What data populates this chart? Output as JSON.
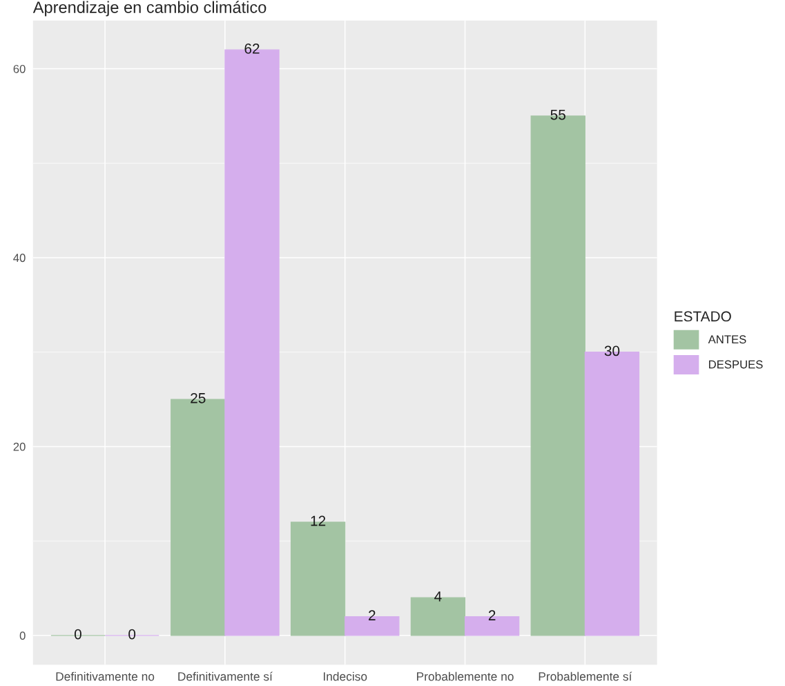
{
  "chart_data": {
    "type": "bar",
    "title": "Aprendizaje en cambio climático",
    "categories": [
      "Definitivamente no",
      "Definitivamente sí",
      "Indeciso",
      "Probablemente no",
      "Probablemente sí"
    ],
    "series": [
      {
        "name": "ANTES",
        "color": "#a3c4a3",
        "values": [
          0,
          25,
          12,
          4,
          55
        ]
      },
      {
        "name": "DESPUES",
        "color": "#d5aeed",
        "values": [
          0,
          62,
          2,
          2,
          30
        ]
      }
    ],
    "ylim": [
      -3.1,
      65.1
    ],
    "yticks": [
      0,
      20,
      40,
      60
    ],
    "grid": true,
    "legend": "right",
    "legend_title": "ESTADO",
    "data_labels": true
  }
}
